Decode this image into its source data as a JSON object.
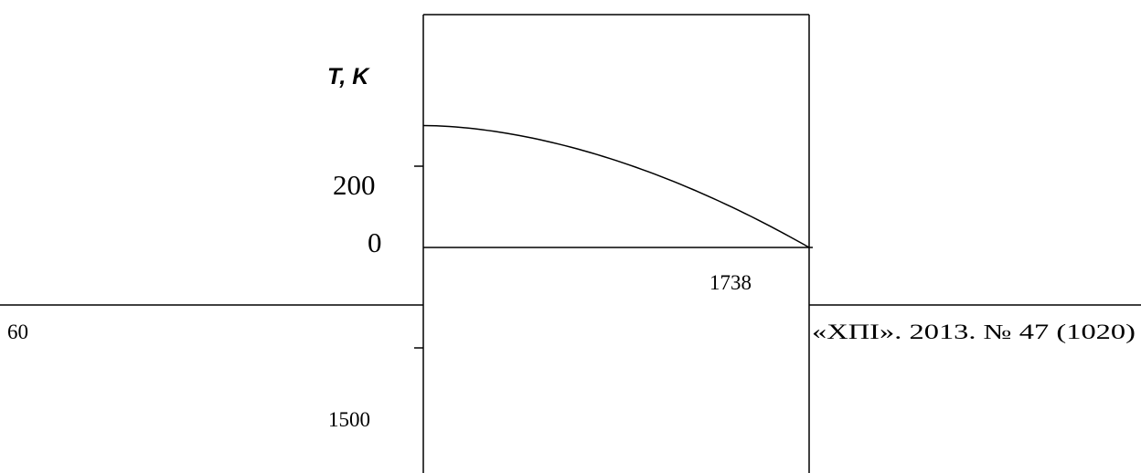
{
  "figure": {
    "y_axis_label": "T, K",
    "tick_200": "200",
    "tick_0": "0",
    "tick_1500": "1500",
    "x_value_label": "1738"
  },
  "footer": {
    "page_number": "60",
    "journal_ref": "«ХПІ». 2013. № 47 (1020)"
  },
  "chart_data": {
    "type": "line",
    "ylabel": "T, K",
    "xlabel": "",
    "series": [
      {
        "values": [
          {
            "x": 0,
            "y": 300
          },
          {
            "x": 1738,
            "y": 0
          }
        ]
      }
    ]
  },
  "colors": {
    "line": "#000000",
    "background": "#ffffff"
  }
}
